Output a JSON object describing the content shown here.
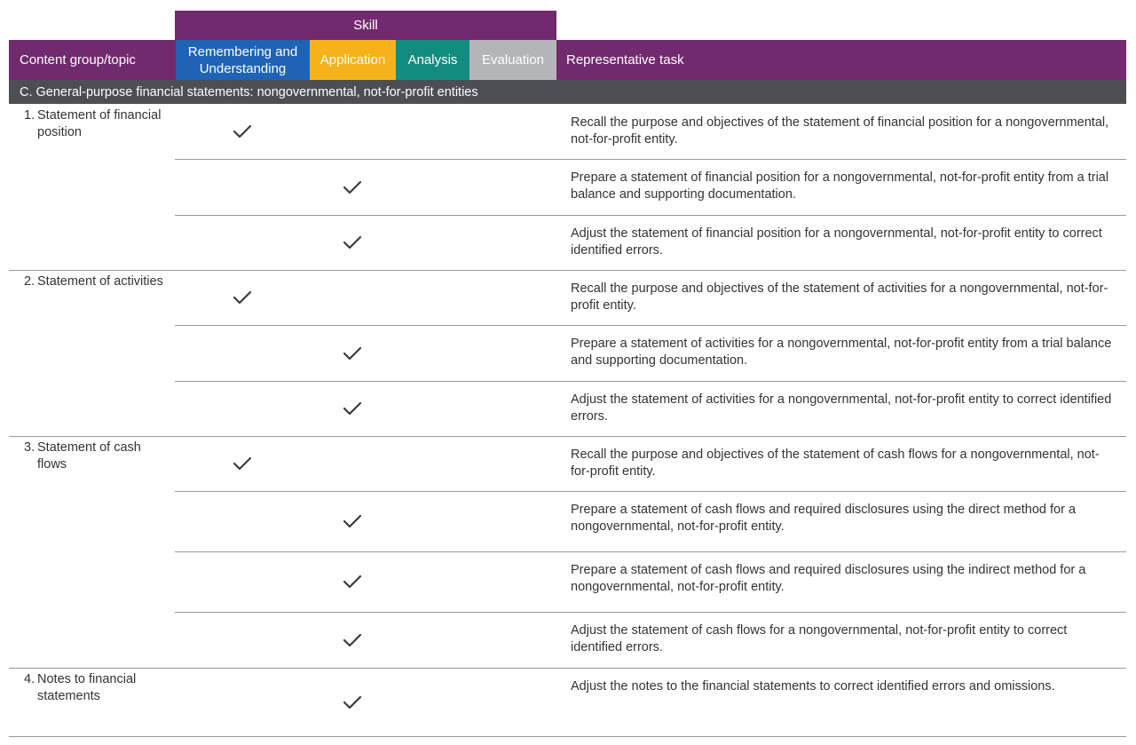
{
  "header": {
    "skill_label": "Skill",
    "content_group_label": "Content group/topic",
    "skills": [
      {
        "label": "Remembering and Understanding",
        "color": "#1f63b5"
      },
      {
        "label": "Application",
        "color": "#f5b21a"
      },
      {
        "label": "Analysis",
        "color": "#138c80"
      },
      {
        "label": "Evaluation",
        "color": "#b3b5b8"
      }
    ],
    "representative_task_label": "Representative task",
    "accent_color": "#722a6e"
  },
  "section": {
    "title": "C. General-purpose financial statements: nongovernmental, not-for-profit entities",
    "color": "#4b4e53"
  },
  "groups": [
    {
      "number": "1.",
      "topic": "Statement of financial position",
      "rows": [
        {
          "skill": "Remembering and Understanding",
          "task": "Recall the purpose and objectives of the statement of financial position for a nongovernmental, not-for-profit entity."
        },
        {
          "skill": "Application",
          "task": "Prepare a statement of financial position for a nongovernmental, not-for-profit entity from a trial balance and supporting documentation."
        },
        {
          "skill": "Application",
          "task": "Adjust the statement of financial position for a nongovernmental, not-for-profit entity to correct identified errors."
        }
      ]
    },
    {
      "number": "2.",
      "topic": "Statement of activities",
      "rows": [
        {
          "skill": "Remembering and Understanding",
          "task": "Recall the purpose and objectives of the statement of activities for a nongovernmental, not-for-profit entity."
        },
        {
          "skill": "Application",
          "task": "Prepare a statement of activities for a nongovernmental, not-for-profit entity from a trial balance and supporting documentation."
        },
        {
          "skill": "Application",
          "task": "Adjust the statement of activities for a nongovernmental, not-for-profit entity to correct identified errors."
        }
      ]
    },
    {
      "number": "3.",
      "topic": "Statement of cash flows",
      "rows": [
        {
          "skill": "Remembering and Understanding",
          "task": "Recall the purpose and objectives of the statement of cash flows for a nongovernmental, not-for-profit entity."
        },
        {
          "skill": "Application",
          "task": "Prepare a statement of cash flows and required disclosures using the direct method for a nongovernmental, not-for-profit entity."
        },
        {
          "skill": "Application",
          "task": "Prepare a statement of cash flows and required disclosures using the indirect method for a nongovernmental, not-for-profit entity."
        },
        {
          "skill": "Application",
          "task": "Adjust the statement of cash flows for a nongovernmental, not-for-profit entity to correct identified errors."
        }
      ]
    },
    {
      "number": "4.",
      "topic": "Notes to financial statements",
      "rows": [
        {
          "skill": "Application",
          "task": "Adjust the notes to the financial statements to correct identified errors and omissions."
        }
      ]
    }
  ]
}
